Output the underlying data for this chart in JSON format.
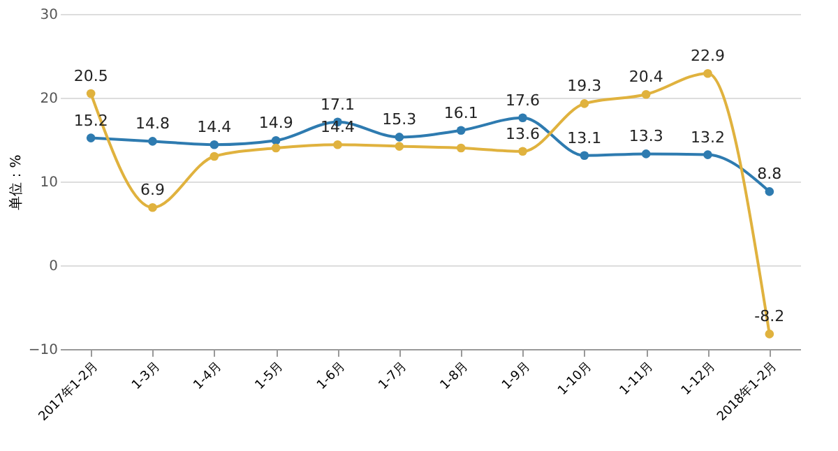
{
  "chart_data": {
    "type": "line",
    "ylabel": "单位：%",
    "categories": [
      "2017年1-2月",
      "1-3月",
      "1-4月",
      "1-5月",
      "1-6月",
      "1-7月",
      "1-8月",
      "1-9月",
      "1-10月",
      "1-11月",
      "1-12月",
      "2018年1-2月"
    ],
    "series": [
      {
        "color": "#2e7bb0",
        "values": [
          15.2,
          14.8,
          14.4,
          14.9,
          17.1,
          15.3,
          16.1,
          17.6,
          13.1,
          13.3,
          13.2,
          8.8
        ],
        "value_labels": [
          "15.2",
          "14.8",
          "14.4",
          "14.9",
          "17.1",
          "15.3",
          "16.1",
          "17.6",
          "13.1",
          "13.3",
          "13.2",
          "8.8"
        ]
      },
      {
        "color": "#e0b23e",
        "values": [
          20.5,
          6.9,
          13.0,
          14.0,
          14.4,
          14.2,
          14.0,
          13.6,
          19.3,
          20.4,
          22.9,
          -8.2
        ],
        "value_labels": [
          "20.5",
          "6.9",
          null,
          null,
          "14.4",
          null,
          null,
          "13.6",
          "19.3",
          "20.4",
          "22.9",
          "-8.2"
        ]
      }
    ],
    "ylim": [
      -10,
      30
    ],
    "yticks": [
      -10,
      0,
      10,
      20,
      30
    ],
    "grid": "y",
    "marker": "circle",
    "line_style": "solid"
  }
}
